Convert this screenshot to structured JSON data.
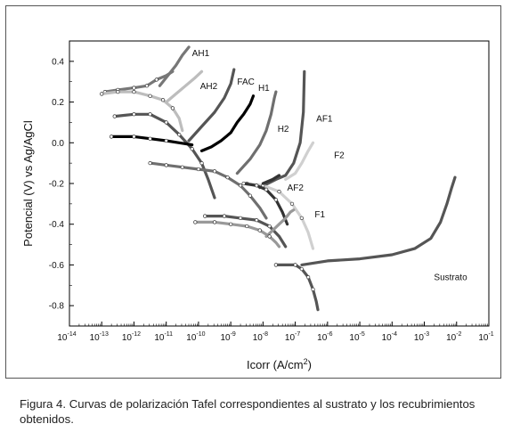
{
  "caption": "Figura 4. Curvas de polarización Tafel correspondientes al sustrato y los recubrimientos obtenidos.",
  "chart_data": {
    "type": "line",
    "xlabel_base": "Icorr (A/cm",
    "xlabel_sup": "2",
    "xlabel_end": ")",
    "ylabel": "Potencial (V) vs Ag/AgCl",
    "x_scale": "log",
    "xlim_exp": [
      -14,
      -1
    ],
    "ylim": [
      -0.9,
      0.5
    ],
    "x_tick_exponents": [
      -14,
      -13,
      -12,
      -11,
      -10,
      -9,
      -8,
      -7,
      -6,
      -5,
      -4,
      -3,
      -2,
      -1
    ],
    "x_tick_base": "10",
    "y_ticks": [
      0.4,
      0.2,
      0.0,
      -0.2,
      -0.4,
      -0.6,
      -0.8
    ],
    "y_tick_labels": [
      "0.4",
      "0.2",
      "0.0",
      "-0.2",
      "-0.4",
      "-0.6",
      "-0.8"
    ],
    "grid": false,
    "series": [
      {
        "name": "AH1",
        "color": "#777777",
        "width": 3.2,
        "cathodic": [
          [
            -12.9,
            0.25
          ],
          [
            -12.5,
            0.26
          ],
          [
            -12.0,
            0.27
          ],
          [
            -11.6,
            0.28
          ],
          [
            -11.3,
            0.31
          ],
          [
            -11.0,
            0.33
          ],
          [
            -10.8,
            0.35
          ]
        ],
        "anodic": [
          [
            -11.2,
            0.28
          ],
          [
            -10.95,
            0.33
          ],
          [
            -10.7,
            0.38
          ],
          [
            -10.5,
            0.43
          ],
          [
            -10.3,
            0.47
          ]
        ],
        "label_xy": [
          -10.2,
          0.44
        ]
      },
      {
        "name": "AH2",
        "color": "#bdbdbd",
        "width": 3.2,
        "cathodic": [
          [
            -13.0,
            0.24
          ],
          [
            -12.5,
            0.25
          ],
          [
            -12.0,
            0.25
          ],
          [
            -11.5,
            0.23
          ],
          [
            -11.1,
            0.21
          ],
          [
            -10.8,
            0.17
          ],
          [
            -10.6,
            0.12
          ],
          [
            -10.5,
            0.06
          ]
        ],
        "anodic": [
          [
            -11.0,
            0.2
          ],
          [
            -10.7,
            0.24
          ],
          [
            -10.4,
            0.28
          ],
          [
            -10.1,
            0.32
          ],
          [
            -9.9,
            0.35
          ]
        ],
        "label_xy": [
          -9.95,
          0.28
        ]
      },
      {
        "name": "FAC",
        "color": "#555555",
        "width": 3.2,
        "cathodic": [
          [
            -12.6,
            0.13
          ],
          [
            -12.0,
            0.14
          ],
          [
            -11.5,
            0.14
          ],
          [
            -11.0,
            0.1
          ],
          [
            -10.6,
            0.04
          ],
          [
            -10.2,
            -0.03
          ],
          [
            -9.9,
            -0.1
          ],
          [
            -9.7,
            -0.18
          ],
          [
            -9.5,
            -0.27
          ]
        ],
        "anodic": [
          [
            -10.3,
            0.01
          ],
          [
            -9.9,
            0.08
          ],
          [
            -9.5,
            0.15
          ],
          [
            -9.2,
            0.22
          ],
          [
            -9.0,
            0.29
          ],
          [
            -8.9,
            0.36
          ]
        ],
        "label_xy": [
          -8.8,
          0.3
        ]
      },
      {
        "name": "H1",
        "color": "#000000",
        "width": 3.2,
        "cathodic": [
          [
            -12.7,
            0.03
          ],
          [
            -12.0,
            0.03
          ],
          [
            -11.5,
            0.02
          ],
          [
            -11.0,
            0.01
          ],
          [
            -10.6,
            0.0
          ],
          [
            -10.2,
            -0.01
          ]
        ],
        "anodic": [
          [
            -9.9,
            -0.04
          ],
          [
            -9.6,
            -0.02
          ],
          [
            -9.3,
            0.01
          ],
          [
            -9.0,
            0.05
          ],
          [
            -8.8,
            0.1
          ],
          [
            -8.6,
            0.14
          ],
          [
            -8.4,
            0.19
          ],
          [
            -8.3,
            0.23
          ]
        ],
        "label_xy": [
          -8.15,
          0.27
        ]
      },
      {
        "name": "H2",
        "color": "#6f6f6f",
        "width": 3.2,
        "cathodic": [
          [
            -11.5,
            -0.1
          ],
          [
            -11.0,
            -0.11
          ],
          [
            -10.5,
            -0.12
          ],
          [
            -10.0,
            -0.13
          ],
          [
            -9.5,
            -0.14
          ],
          [
            -9.1,
            -0.17
          ],
          [
            -8.7,
            -0.21
          ],
          [
            -8.4,
            -0.26
          ],
          [
            -8.1,
            -0.32
          ],
          [
            -7.9,
            -0.37
          ]
        ],
        "anodic": [
          [
            -8.8,
            -0.15
          ],
          [
            -8.4,
            -0.08
          ],
          [
            -8.1,
            -0.01
          ],
          [
            -7.9,
            0.06
          ],
          [
            -7.75,
            0.14
          ],
          [
            -7.65,
            0.22
          ],
          [
            -7.6,
            0.25
          ]
        ],
        "label_xy": [
          -7.55,
          0.07
        ]
      },
      {
        "name": "AF1",
        "color": "#555555",
        "width": 3.2,
        "cathodic": [
          [
            -9.8,
            -0.36
          ],
          [
            -9.2,
            -0.36
          ],
          [
            -8.7,
            -0.37
          ],
          [
            -8.2,
            -0.38
          ],
          [
            -7.8,
            -0.41
          ],
          [
            -7.5,
            -0.46
          ],
          [
            -7.3,
            -0.51
          ]
        ],
        "anodic": [
          [
            -8.1,
            -0.22
          ],
          [
            -7.6,
            -0.18
          ],
          [
            -7.3,
            -0.16
          ],
          [
            -7.05,
            -0.1
          ],
          [
            -6.85,
            0.0
          ],
          [
            -6.75,
            0.15
          ],
          [
            -6.72,
            0.35
          ]
        ],
        "label_xy": [
          -6.35,
          0.12
        ]
      },
      {
        "name": "F2",
        "color": "#d0d0d0",
        "width": 3.2,
        "cathodic": [
          [
            -8.5,
            -0.2
          ],
          [
            -8.0,
            -0.21
          ],
          [
            -7.5,
            -0.24
          ],
          [
            -7.1,
            -0.3
          ],
          [
            -6.8,
            -0.37
          ],
          [
            -6.6,
            -0.44
          ],
          [
            -6.45,
            -0.52
          ]
        ],
        "anodic": [
          [
            -7.3,
            -0.18
          ],
          [
            -7.0,
            -0.15
          ],
          [
            -6.8,
            -0.1
          ],
          [
            -6.6,
            -0.04
          ],
          [
            -6.45,
            0.0
          ]
        ],
        "label_xy": [
          -5.8,
          -0.06
        ]
      },
      {
        "name": "AF2",
        "color": "#333333",
        "width": 3.2,
        "cathodic": [
          [
            -8.6,
            -0.2
          ],
          [
            -8.2,
            -0.21
          ],
          [
            -7.9,
            -0.23
          ],
          [
            -7.6,
            -0.28
          ],
          [
            -7.4,
            -0.34
          ],
          [
            -7.25,
            -0.4
          ]
        ],
        "anodic": [
          [
            -8.0,
            -0.2
          ],
          [
            -7.7,
            -0.18
          ],
          [
            -7.5,
            -0.16
          ]
        ],
        "label_xy": [
          -7.25,
          -0.22
        ]
      },
      {
        "name": "F1",
        "color": "#999999",
        "width": 3.2,
        "cathodic": [
          [
            -10.1,
            -0.39
          ],
          [
            -9.5,
            -0.39
          ],
          [
            -9.0,
            -0.4
          ],
          [
            -8.5,
            -0.41
          ],
          [
            -8.1,
            -0.43
          ],
          [
            -7.8,
            -0.46
          ],
          [
            -7.6,
            -0.49
          ],
          [
            -7.5,
            -0.51
          ]
        ],
        "anodic": [
          [
            -7.9,
            -0.46
          ],
          [
            -7.7,
            -0.43
          ],
          [
            -7.5,
            -0.4
          ],
          [
            -7.3,
            -0.37
          ],
          [
            -7.15,
            -0.34
          ],
          [
            -7.05,
            -0.33
          ]
        ],
        "label_xy": [
          -6.4,
          -0.35
        ]
      },
      {
        "name": "Sustrato",
        "color": "#555555",
        "width": 3.2,
        "cathodic": [
          [
            -7.6,
            -0.6
          ],
          [
            -7.0,
            -0.6
          ],
          [
            -6.8,
            -0.62
          ],
          [
            -6.6,
            -0.66
          ],
          [
            -6.45,
            -0.72
          ],
          [
            -6.35,
            -0.78
          ],
          [
            -6.3,
            -0.82
          ]
        ],
        "anodic": [
          [
            -6.8,
            -0.6
          ],
          [
            -6.0,
            -0.58
          ],
          [
            -5.0,
            -0.57
          ],
          [
            -4.0,
            -0.55
          ],
          [
            -3.3,
            -0.52
          ],
          [
            -2.8,
            -0.47
          ],
          [
            -2.5,
            -0.39
          ],
          [
            -2.3,
            -0.3
          ],
          [
            -2.15,
            -0.22
          ],
          [
            -2.05,
            -0.17
          ]
        ],
        "label_xy": [
          -2.7,
          -0.66
        ]
      }
    ]
  }
}
